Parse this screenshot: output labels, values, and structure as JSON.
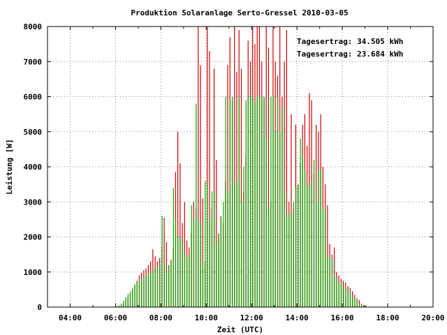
{
  "chart_data": {
    "type": "bar",
    "title": "Produktion Solaranlage Serto-Gressel 2010-03-05",
    "xlabel": "Zeit (UTC)",
    "ylabel": "Leistung [W]",
    "xlim": [
      3.0,
      20.0
    ],
    "ylim": [
      0,
      8000
    ],
    "x_ticks": [
      4,
      6,
      8,
      10,
      12,
      14,
      16,
      18,
      20
    ],
    "x_tick_labels": [
      "04:00",
      "06:00",
      "08:00",
      "10:00",
      "12:00",
      "14:00",
      "16:00",
      "18:00",
      "20:00"
    ],
    "y_ticks": [
      0,
      1000,
      2000,
      3000,
      4000,
      5000,
      6000,
      7000,
      8000
    ],
    "y_tick_labels": [
      "0",
      "1000",
      "2000",
      "3000",
      "4000",
      "5000",
      "6000",
      "7000",
      "8000"
    ],
    "grid": true,
    "legend_position": "top-right",
    "legend_labels": [
      "Tagesertrag: 34.505 kWh",
      "Tagesertrag: 23.684 kWh"
    ],
    "colors": {
      "series_a": "#cc0000",
      "series_b": "#00aa00"
    },
    "x": [
      6.1,
      6.2,
      6.3,
      6.4,
      6.5,
      6.6,
      6.7,
      6.8,
      6.9,
      7.0,
      7.1,
      7.2,
      7.3,
      7.4,
      7.5,
      7.6,
      7.7,
      7.8,
      7.9,
      8.0,
      8.1,
      8.2,
      8.3,
      8.4,
      8.5,
      8.6,
      8.7,
      8.8,
      8.9,
      9.0,
      9.1,
      9.2,
      9.3,
      9.4,
      9.5,
      9.6,
      9.7,
      9.8,
      9.9,
      10.0,
      10.1,
      10.2,
      10.3,
      10.4,
      10.5,
      10.6,
      10.7,
      10.8,
      10.9,
      11.0,
      11.1,
      11.2,
      11.3,
      11.4,
      11.5,
      11.6,
      11.7,
      11.8,
      11.9,
      12.0,
      12.1,
      12.2,
      12.3,
      12.4,
      12.5,
      12.6,
      12.7,
      12.8,
      12.9,
      13.0,
      13.1,
      13.2,
      13.3,
      13.4,
      13.5,
      13.6,
      13.7,
      13.8,
      13.9,
      14.0,
      14.1,
      14.2,
      14.3,
      14.4,
      14.5,
      14.6,
      14.7,
      14.8,
      14.9,
      15.0,
      15.1,
      15.2,
      15.3,
      15.4,
      15.5,
      15.6,
      15.7,
      15.8,
      15.9,
      16.0,
      16.1,
      16.2,
      16.3,
      16.4,
      16.5,
      16.6,
      16.7,
      16.8,
      16.9,
      17.0,
      17.1
    ],
    "series": [
      {
        "values": [
          20,
          50,
          100,
          180,
          280,
          380,
          500,
          620,
          750,
          900,
          980,
          1050,
          1100,
          1200,
          1300,
          1650,
          1450,
          1300,
          1400,
          1700,
          2550,
          1850,
          1200,
          1350,
          1700,
          3850,
          5000,
          4100,
          2400,
          3000,
          1900,
          1700,
          2100,
          3000,
          2800,
          8000,
          6900,
          3100,
          1300,
          8000,
          7300,
          2800,
          6800,
          4200,
          2100,
          2600,
          2400,
          3600,
          6900,
          7700,
          5900,
          8000,
          6700,
          7900,
          6800,
          3300,
          4300,
          7600,
          7000,
          8000,
          7500,
          8000,
          8000,
          7000,
          6000,
          8000,
          7400,
          3000,
          8000,
          7000,
          6600,
          8000,
          6000,
          7000,
          7900,
          3000,
          5500,
          2800,
          5200,
          3500,
          4100,
          5200,
          5500,
          4600,
          6100,
          5900,
          3800,
          5200,
          5000,
          5500,
          4000,
          3500,
          2900,
          1800,
          1500,
          1700,
          1000,
          900,
          800,
          750,
          700,
          600,
          550,
          450,
          350,
          250,
          200,
          100,
          60,
          30,
          10
        ]
      },
      {
        "values": [
          20,
          50,
          100,
          180,
          280,
          380,
          450,
          550,
          650,
          700,
          750,
          800,
          850,
          900,
          950,
          1000,
          1050,
          1100,
          1150,
          1200,
          2600,
          1250,
          1000,
          1200,
          1300,
          3400,
          2500,
          2000,
          2000,
          1800,
          1500,
          1400,
          1500,
          2900,
          2500,
          5800,
          2500,
          2400,
          1200,
          3600,
          3500,
          2500,
          3300,
          3300,
          1800,
          2000,
          2500,
          3000,
          6000,
          3300,
          5900,
          6000,
          3500,
          3600,
          6000,
          3000,
          4000,
          5900,
          6000,
          6000,
          6000,
          5800,
          6000,
          6000,
          6000,
          6000,
          4800,
          2800,
          6000,
          6000,
          5000,
          6000,
          5000,
          5700,
          3300,
          2600,
          2700,
          2600,
          3000,
          3400,
          3500,
          4800,
          4300,
          3900,
          3500,
          3400,
          3600,
          4200,
          3000,
          3900,
          3900,
          2800,
          2800,
          1500,
          1400,
          1400,
          900,
          800,
          700,
          700,
          600,
          550,
          500,
          400,
          300,
          230,
          180,
          100,
          60,
          30,
          10
        ]
      }
    ]
  }
}
